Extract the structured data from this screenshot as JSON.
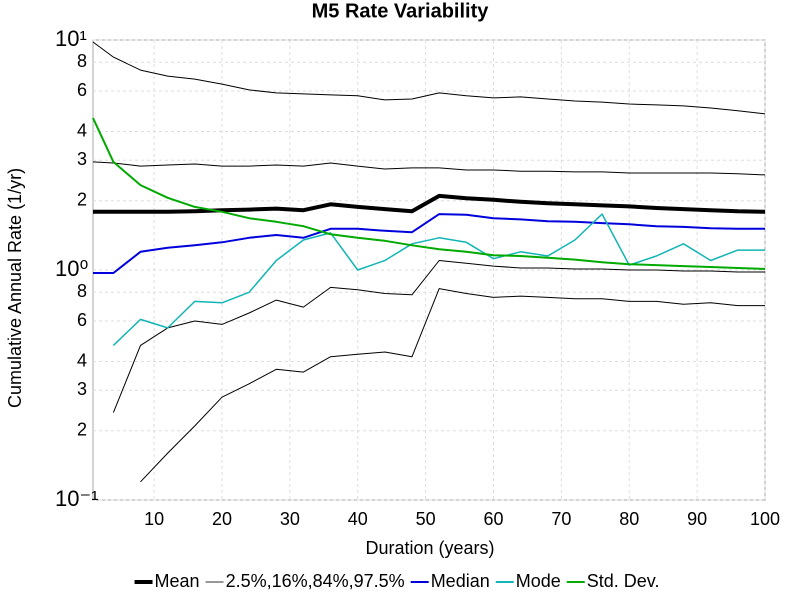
{
  "chart_data": {
    "type": "line",
    "title": "M5 Rate Variability",
    "x_label": "Duration (years)",
    "y_label": "Cumulative Annual Rate (1/yr)",
    "log_y": true,
    "grid": true,
    "legend": "bottom",
    "xlim": [
      1,
      100
    ],
    "xticks": [
      10,
      20,
      30,
      40,
      50,
      60,
      70,
      80,
      90,
      100
    ],
    "ylim": [
      0.1,
      10
    ],
    "yticks": [
      {
        "value": 0.1,
        "label": "10⁻¹"
      },
      {
        "value": 0.2,
        "label": "2"
      },
      {
        "value": 0.3,
        "label": "3"
      },
      {
        "value": 0.4,
        "label": "4"
      },
      {
        "value": 0.6,
        "label": "6"
      },
      {
        "value": 0.8,
        "label": "8"
      },
      {
        "value": 1,
        "label": "10⁰"
      },
      2,
      3,
      4,
      6,
      8,
      {
        "value": 10,
        "label": "10¹"
      }
    ],
    "x": [
      1,
      4,
      8,
      12,
      16,
      20,
      24,
      28,
      32,
      36,
      40,
      44,
      48,
      52,
      56,
      60,
      64,
      68,
      72,
      76,
      80,
      84,
      88,
      92,
      96,
      100
    ],
    "series": [
      {
        "name": "Mean",
        "color": "#000000",
        "width": 4,
        "values": [
          1.79,
          1.79,
          1.79,
          1.79,
          1.8,
          1.82,
          1.83,
          1.85,
          1.82,
          1.93,
          1.88,
          1.84,
          1.8,
          2.1,
          2.05,
          2.02,
          1.98,
          1.95,
          1.93,
          1.91,
          1.89,
          1.86,
          1.84,
          1.82,
          1.8,
          1.79
        ]
      },
      {
        "name": "2.5%,16%,84%,97.5%",
        "color": "#000000",
        "width": 1,
        "lines": [
          [
            null,
            null,
            0.12,
            0.16,
            0.21,
            0.28,
            0.32,
            0.37,
            0.36,
            0.42,
            0.43,
            0.44,
            0.42,
            0.83,
            0.79,
            0.76,
            0.77,
            0.76,
            0.75,
            0.75,
            0.73,
            0.73,
            0.71,
            0.72,
            0.7,
            0.7
          ],
          [
            null,
            0.24,
            0.47,
            0.56,
            0.6,
            0.58,
            0.65,
            0.74,
            0.69,
            0.84,
            0.82,
            0.79,
            0.78,
            1.1,
            1.07,
            1.04,
            1.02,
            1.02,
            1.01,
            1.01,
            1.0,
            1.0,
            0.99,
            0.99,
            0.98,
            0.98
          ],
          [
            2.95,
            2.92,
            2.83,
            2.86,
            2.89,
            2.83,
            2.83,
            2.86,
            2.83,
            2.92,
            2.83,
            2.75,
            2.78,
            2.78,
            2.72,
            2.72,
            2.69,
            2.69,
            2.67,
            2.67,
            2.64,
            2.64,
            2.64,
            2.64,
            2.62,
            2.59
          ],
          [
            9.8,
            8.43,
            7.4,
            6.97,
            6.76,
            6.43,
            6.07,
            5.89,
            5.83,
            5.77,
            5.72,
            5.49,
            5.54,
            5.89,
            5.72,
            5.6,
            5.66,
            5.54,
            5.43,
            5.37,
            5.27,
            5.22,
            5.17,
            5.06,
            4.92,
            4.77
          ]
        ]
      },
      {
        "name": "Median",
        "color": "#0000dd",
        "width": 2,
        "values": [
          0.97,
          0.97,
          1.2,
          1.25,
          1.28,
          1.32,
          1.38,
          1.42,
          1.38,
          1.51,
          1.51,
          1.48,
          1.46,
          1.75,
          1.74,
          1.68,
          1.66,
          1.63,
          1.62,
          1.6,
          1.58,
          1.55,
          1.54,
          1.52,
          1.51,
          1.51
        ]
      },
      {
        "name": "Mode",
        "color": "#11b5b5",
        "width": 1.5,
        "values": [
          null,
          0.47,
          0.61,
          0.56,
          0.73,
          0.72,
          0.8,
          1.1,
          1.35,
          1.45,
          1.0,
          1.1,
          1.3,
          1.38,
          1.32,
          1.12,
          1.2,
          1.15,
          1.35,
          1.75,
          1.05,
          1.15,
          1.3,
          1.1,
          1.22,
          1.22
        ]
      },
      {
        "name": "Std. Dev.",
        "color": "#00aa00",
        "width": 2,
        "values": [
          4.58,
          2.95,
          2.34,
          2.06,
          1.88,
          1.79,
          1.68,
          1.62,
          1.55,
          1.43,
          1.38,
          1.34,
          1.28,
          1.23,
          1.2,
          1.16,
          1.15,
          1.13,
          1.11,
          1.08,
          1.06,
          1.05,
          1.04,
          1.03,
          1.02,
          1.01
        ]
      }
    ]
  }
}
